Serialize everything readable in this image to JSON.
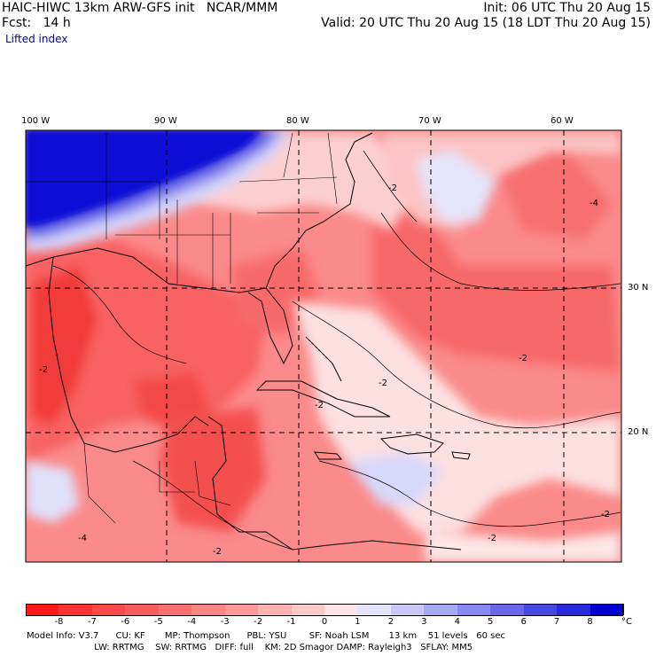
{
  "header": {
    "left_line1": "HAIC-HIWC 13km ARW-GFS init   NCAR/MMM",
    "left_line2": "Fcst:   14 h",
    "right_line1": "Init: 06 UTC Thu 20 Aug 15",
    "right_line2": "Valid: 20 UTC Thu 20 Aug 15 (18 LDT Thu 20 Aug 15)",
    "field_name": "Lifted index"
  },
  "map": {
    "lon_labels": [
      "100 W",
      "90 W",
      "80 W",
      "70 W",
      "60 W"
    ],
    "lat_labels": [
      "30 N",
      "20 N"
    ],
    "region": "Gulf of Mexico / Caribbean / Western Atlantic",
    "contour_labels": [
      "-2",
      "-2",
      "-2",
      "-2",
      "-2",
      "-2",
      "-4",
      "-4",
      "-2",
      "-2"
    ],
    "colors": {
      "negative_strong": "#e8001e",
      "neutral": "#ffffff",
      "positive_strong": "#0000e0",
      "land_outline": "#000000",
      "grid": "#000000"
    }
  },
  "colorbar": {
    "labels": [
      "-8",
      "-7",
      "-6",
      "-5",
      "-4",
      "-3",
      "-2",
      "-1",
      "0",
      "1",
      "2",
      "3",
      "4",
      "5",
      "6",
      "7",
      "8",
      "°C"
    ],
    "colors": [
      "#ff1a1a",
      "#ff3333",
      "#fd4848",
      "#fb5d5d",
      "#fa7070",
      "#fb8585",
      "#fc9a9a",
      "#fdb0b0",
      "#fec8c8",
      "#fee4e4",
      "#e4e4fe",
      "#c8c8fa",
      "#a8a8f5",
      "#8888f0",
      "#6868ea",
      "#4848e4",
      "#2828dc",
      "#0000d0"
    ]
  },
  "footer": {
    "line1": "Model Info: V3.7      CU: KF       MP: Thompson      PBL: YSU        SF: Noah LSM       13 km    51 levels   60 sec",
    "line2": "                        LW: RRTMG    SW: RRTMG   DIFF: full    KM: 2D Smagor DAMP: Rayleigh3   SFLAY: MM5"
  }
}
